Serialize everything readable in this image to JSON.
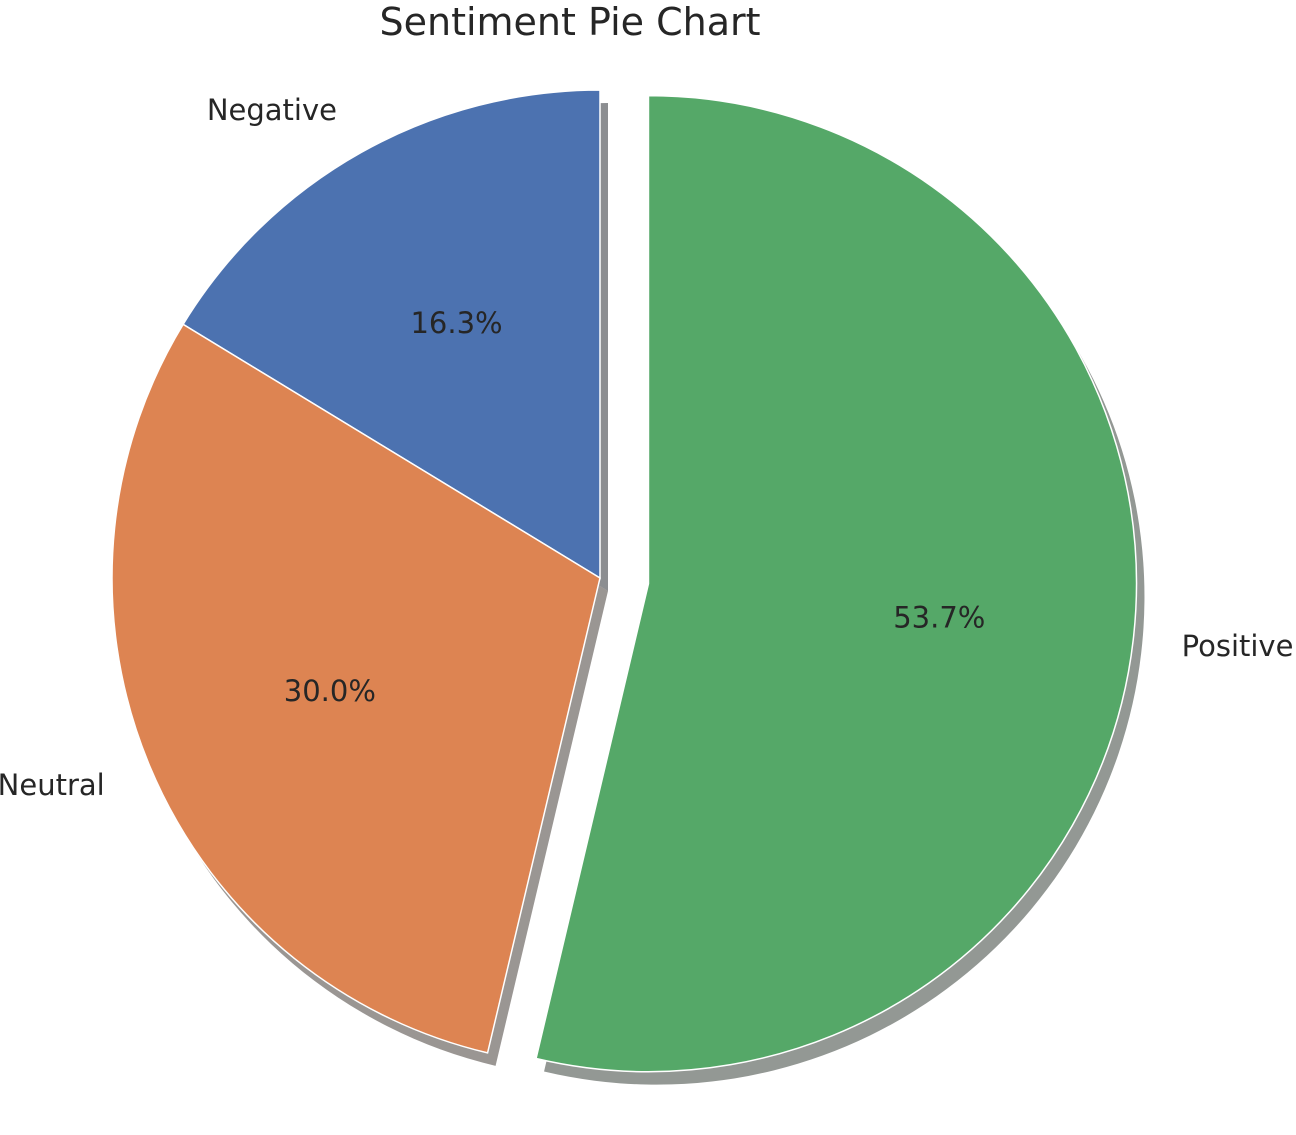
{
  "chart_data": {
    "type": "pie",
    "title": "Sentiment Pie Chart",
    "start_angle_deg": 90,
    "direction": "counterclockwise",
    "shadow": true,
    "slices": [
      {
        "label": "Negative",
        "value": 16.3,
        "pct_label": "16.3%",
        "color": "#4c72b0",
        "explode": 0
      },
      {
        "label": "Neutral",
        "value": 30.0,
        "pct_label": "30.0%",
        "color": "#dd8452",
        "explode": 0
      },
      {
        "label": "Positive",
        "value": 53.7,
        "pct_label": "53.7%",
        "color": "#55a868",
        "explode": 0.1
      }
    ]
  }
}
